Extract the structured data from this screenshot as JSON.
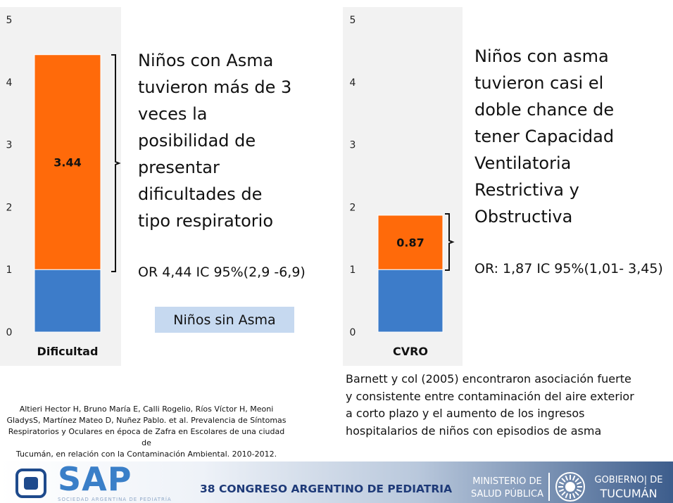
{
  "chart_data": [
    {
      "type": "bar",
      "stacked": true,
      "categories": [
        "Dificultad"
      ],
      "series": [
        {
          "values": [
            1.0
          ],
          "color": "#3d7cc9"
        },
        {
          "values": [
            3.44
          ],
          "color": "#ff6a0a",
          "data_labels": [
            "3.44"
          ]
        }
      ],
      "y_ticks": [
        "0",
        "1",
        "2",
        "3",
        "4",
        "5"
      ],
      "ylim": [
        0,
        5
      ],
      "grid": false
    },
    {
      "type": "bar",
      "stacked": true,
      "categories": [
        "CVRO"
      ],
      "series": [
        {
          "values": [
            1.0
          ],
          "color": "#3d7cc9"
        },
        {
          "values": [
            0.87
          ],
          "color": "#ff6a0a",
          "data_labels": [
            "0.87"
          ]
        }
      ],
      "y_ticks": [
        "0",
        "1",
        "2",
        "3",
        "4",
        "5"
      ],
      "ylim": [
        0,
        5
      ],
      "grid": false
    }
  ],
  "panel1": {
    "lines": [
      "Niños con Asma",
      "tuvieron más de 3",
      "veces la",
      "posibilidad de",
      "presentar",
      "dificultades de",
      "tipo respiratorio"
    ],
    "or_text": "OR 4,44 IC 95%(2,9 -6,9)"
  },
  "legend": {
    "label": "Niños sin Asma",
    "color": "#c6d9f0"
  },
  "panel2": {
    "lines": [
      "Niños con asma",
      "tuvieron casi el",
      "doble chance de",
      "tener Capacidad",
      "Ventilatoria",
      "Restrictiva y",
      "Obstructiva"
    ],
    "or_text": "OR: 1,87 IC 95%(1,01- 3,45)"
  },
  "reference": {
    "lines": [
      "Altieri Hector H, Bruno María E, Calli Rogelio, Ríos Víctor H, Meoni",
      "GladysS, Martínez Mateo D, Nuñez Pablo. et al. Prevalencia de Síntomas",
      "Respiratorios y Oculares en época de Zafra en Escolares de una ciudad de",
      "Tucumán, en relación con la Contaminación Ambiental. 2010-2012."
    ]
  },
  "barnett": {
    "lines": [
      "Barnett  y col (2005) encontraron asociación fuerte",
      "y consistente entre contaminación del aire exterior",
      "a corto plazo y el aumento de los ingresos",
      "hospitalarios de niños con episodios de asma"
    ]
  },
  "footer": {
    "sap_logo_text": "SAP",
    "sap_subtitle": "SOCIEDAD ARGENTINA DE PEDIATRÍA",
    "congreso": "38 CONGRESO ARGENTINO DE PEDIATRIA",
    "ministerio_line1": "MINISTERIO DE",
    "ministerio_line2": "SALUD PÚBLICA",
    "gobierno_line1": "GOBIERNO| DE",
    "gobierno_line2": "TUCUMÁN",
    "sun_icon": "sun-logo-icon"
  }
}
